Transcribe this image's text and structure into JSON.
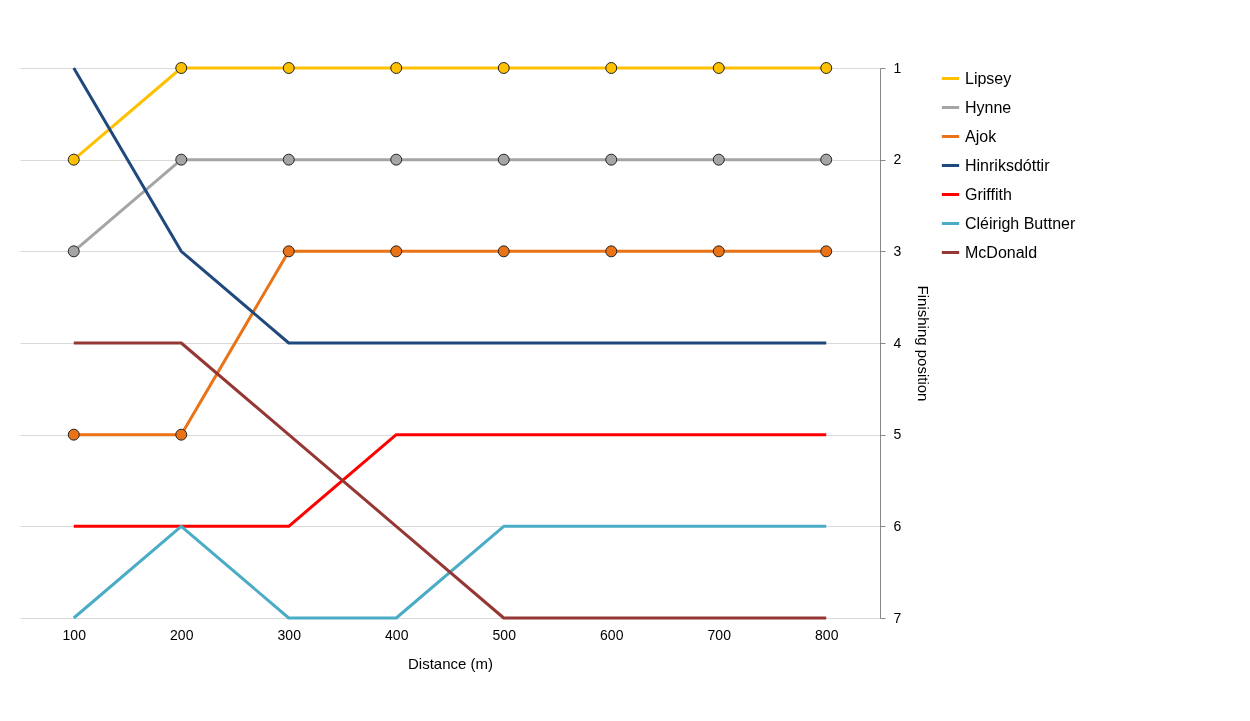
{
  "chart_data": {
    "type": "line",
    "xlabel": "Distance (m)",
    "ylabel": "Finishing position",
    "categories": [
      "100",
      "200",
      "300",
      "400",
      "500",
      "600",
      "700",
      "800"
    ],
    "ylim": [
      7,
      1
    ],
    "yticks": [
      1,
      2,
      3,
      4,
      5,
      6,
      7
    ],
    "grid": "y",
    "legend": "right",
    "series": [
      {
        "name": "Lipsey",
        "color": "#ffc000",
        "marker": "circle",
        "values": [
          2,
          1,
          1,
          1,
          1,
          1,
          1,
          1
        ]
      },
      {
        "name": "Hynne",
        "color": "#a5a5a5",
        "marker": "circle",
        "values": [
          3,
          2,
          2,
          2,
          2,
          2,
          2,
          2
        ]
      },
      {
        "name": "Ajok",
        "color": "#e97316",
        "marker": "circle",
        "values": [
          5,
          5,
          3,
          3,
          3,
          3,
          3,
          3
        ]
      },
      {
        "name": "Hinriksdóttir",
        "color": "#1f497d",
        "marker": "none",
        "values": [
          1,
          3,
          4,
          4,
          4,
          4,
          4,
          4
        ]
      },
      {
        "name": "Griffith",
        "color": "#ff0000",
        "marker": "none",
        "values": [
          6,
          6,
          6,
          5,
          5,
          5,
          5,
          5
        ]
      },
      {
        "name": "Cléirigh Buttner",
        "color": "#4bacc6",
        "marker": "none",
        "values": [
          7,
          6,
          7,
          7,
          6,
          6,
          6,
          6
        ]
      },
      {
        "name": "McDonald",
        "color": "#953735",
        "marker": "none",
        "values": [
          4,
          4,
          5,
          6,
          7,
          7,
          7,
          7
        ]
      }
    ]
  }
}
